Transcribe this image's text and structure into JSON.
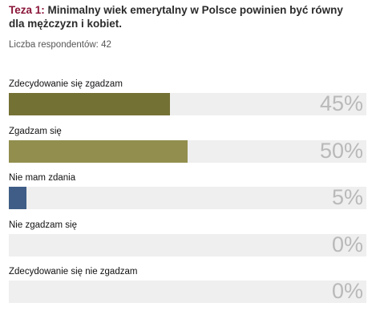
{
  "poll": {
    "title_lead": "Teza 1:",
    "title_text": " Minimalny wiek emerytalny w Polsce powinien być równy dla mężczyzn i kobiet.",
    "respondents": "Liczba respondentów: 42"
  },
  "chart_data": {
    "type": "bar",
    "orientation": "horizontal",
    "categories": [
      "Zdecydowanie się zgadzam",
      "Zgadzam się",
      "Nie mam zdania",
      "Nie zgadzam się",
      "Zdecydowanie się nie zgadzam"
    ],
    "values": [
      45,
      50,
      5,
      0,
      0
    ],
    "value_labels": [
      "45%",
      "50%",
      "5%",
      "0%",
      "0%"
    ],
    "colors": [
      "#747135",
      "#928f4e",
      "#3f5d86",
      "#928f4e",
      "#928f4e"
    ],
    "xlim": [
      0,
      100
    ],
    "grid": false,
    "legend": "none"
  }
}
